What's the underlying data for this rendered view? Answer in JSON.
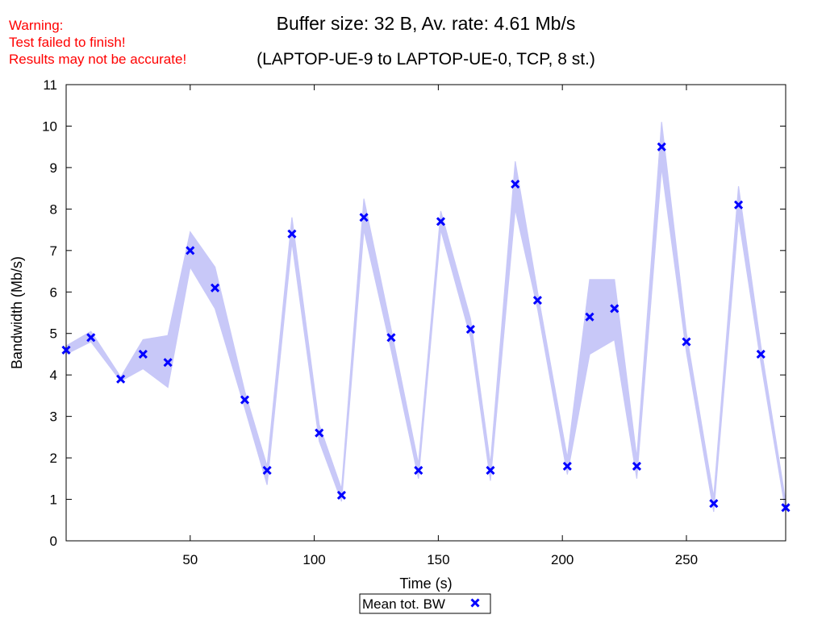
{
  "warning": {
    "line1": "Warning:",
    "line2": "Test failed to finish!",
    "line3": "Results may not be accurate!",
    "color": "#ff0000"
  },
  "chart_data": {
    "type": "line",
    "title": "Buffer size: 32 B, Av. rate: 4.61 Mb/s",
    "subtitle": "(LAPTOP-UE-9 to LAPTOP-UE-0, TCP, 8 st.)",
    "xlabel": "Time (s)",
    "ylabel": "Bandwidth (Mb/s)",
    "xlim": [
      0,
      290
    ],
    "ylim": [
      0,
      11
    ],
    "xticks": [
      50,
      100,
      150,
      200,
      250
    ],
    "yticks": [
      0,
      1,
      2,
      3,
      4,
      5,
      6,
      7,
      8,
      9,
      10,
      11
    ],
    "grid": false,
    "legend_position": "bottom-center",
    "series": [
      {
        "name": "Mean tot. BW",
        "marker": "x",
        "color": "#0000ff",
        "band_color": "#c8c8f8",
        "x": [
          0,
          10,
          22,
          31,
          41,
          50,
          60,
          72,
          81,
          91,
          102,
          111,
          120,
          131,
          142,
          151,
          163,
          171,
          181,
          190,
          202,
          211,
          221,
          230,
          240,
          250,
          261,
          271,
          280,
          290
        ],
        "y": [
          4.6,
          4.9,
          3.9,
          4.5,
          4.3,
          7.0,
          6.1,
          3.4,
          1.7,
          7.4,
          2.6,
          1.1,
          7.8,
          4.9,
          1.7,
          7.7,
          5.1,
          1.7,
          8.6,
          5.8,
          1.8,
          5.4,
          5.6,
          1.8,
          9.5,
          4.8,
          0.9,
          8.1,
          4.5,
          0.8
        ],
        "lower": [
          4.5,
          4.8,
          3.85,
          4.15,
          3.7,
          6.6,
          5.6,
          3.2,
          1.35,
          7.2,
          2.4,
          0.95,
          7.5,
          4.6,
          1.5,
          7.5,
          4.9,
          1.45,
          8.0,
          5.6,
          1.6,
          4.5,
          4.85,
          1.5,
          9.0,
          4.55,
          0.7,
          7.8,
          4.3,
          0.7
        ],
        "upper": [
          4.7,
          5.05,
          3.95,
          4.85,
          4.95,
          7.45,
          6.6,
          3.6,
          1.8,
          7.8,
          2.8,
          1.25,
          8.25,
          5.1,
          1.85,
          7.95,
          5.35,
          1.85,
          9.15,
          6.0,
          2.0,
          6.3,
          6.3,
          2.0,
          10.1,
          5.0,
          1.05,
          8.55,
          4.7,
          0.95
        ]
      }
    ]
  }
}
